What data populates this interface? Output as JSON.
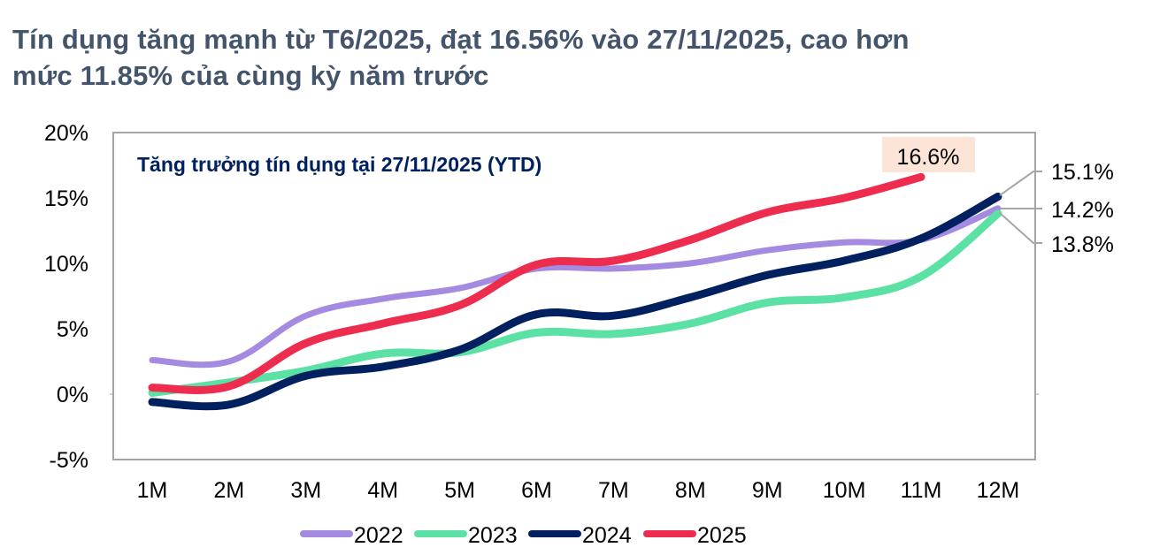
{
  "headline": {
    "line1": "Tín dụng tăng mạnh từ T6/2025, đạt 16.56% vào 27/11/2025, cao hơn",
    "line2": "mức 11.85% của cùng kỳ năm trước"
  },
  "chart_data": {
    "type": "line",
    "title": "Tăng trưởng tín dụng tại 27/11/2025 (YTD)",
    "xlabel": "",
    "ylabel": "",
    "categories": [
      "1M",
      "2M",
      "3M",
      "4M",
      "5M",
      "6M",
      "7M",
      "8M",
      "9M",
      "10M",
      "11M",
      "12M"
    ],
    "y_ticks": [
      "20%",
      "15%",
      "10%",
      "5%",
      "0%",
      "-5%"
    ],
    "ylim": [
      -5,
      20
    ],
    "grid": false,
    "smooth": true,
    "legend_position": "bottom",
    "series": [
      {
        "name": "2022",
        "color": "#A48AE0",
        "width": 7,
        "values": [
          2.6,
          2.5,
          6.0,
          7.3,
          8.1,
          9.6,
          9.6,
          10.0,
          11.0,
          11.6,
          11.8,
          14.2
        ]
      },
      {
        "name": "2023",
        "color": "#5CE1A4",
        "width": 9,
        "values": [
          0.1,
          0.9,
          1.8,
          3.1,
          3.2,
          4.7,
          4.6,
          5.4,
          7.0,
          7.4,
          9.0,
          13.8
        ]
      },
      {
        "name": "2024",
        "color": "#002060",
        "width": 9,
        "values": [
          -0.6,
          -0.8,
          1.4,
          2.1,
          3.4,
          6.1,
          6.0,
          7.4,
          9.1,
          10.2,
          11.9,
          15.1
        ]
      },
      {
        "name": "2025",
        "color": "#EE2D4E",
        "width": 9,
        "values": [
          0.5,
          0.6,
          3.9,
          5.4,
          6.8,
          9.9,
          10.2,
          11.8,
          13.9,
          15.0,
          16.6,
          null
        ]
      }
    ],
    "annotations": [
      {
        "text": "16.6%",
        "series": "2025",
        "at": "11M",
        "box_fill": "#FCE4D6"
      },
      {
        "text": "15.1%",
        "series": "2024",
        "at": "12M"
      },
      {
        "text": "14.2%",
        "series": "2022",
        "at": "12M"
      },
      {
        "text": "13.8%",
        "series": "2023",
        "at": "12M"
      }
    ]
  }
}
